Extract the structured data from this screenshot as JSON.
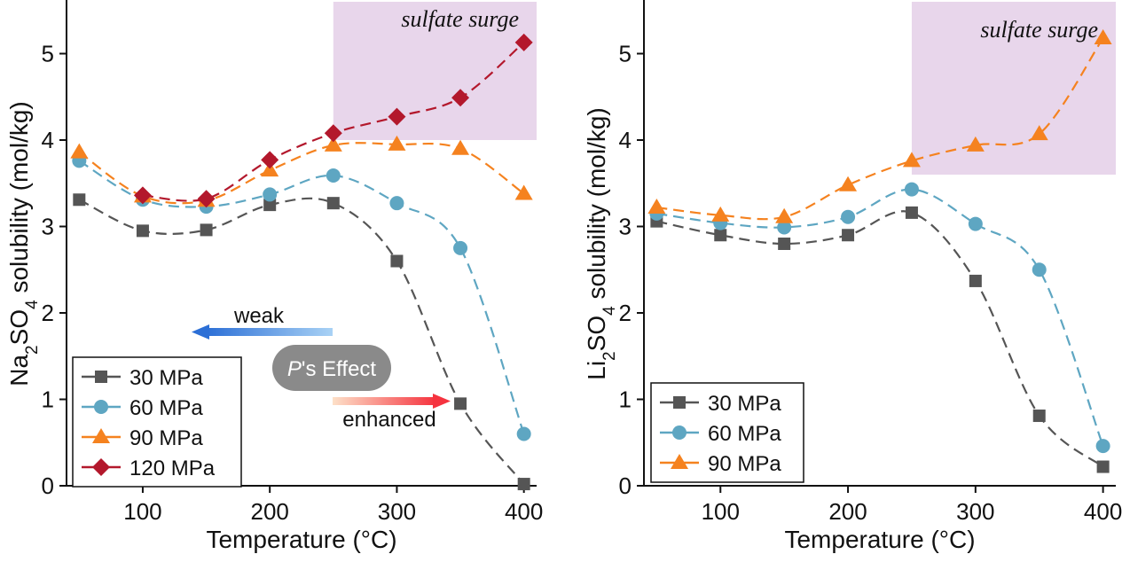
{
  "chart_data": [
    {
      "type": "line",
      "xlabel": "Temperature (°C)",
      "ylabel_parts": [
        "Na",
        "2",
        "SO",
        "4",
        " solubility (mol/kg)"
      ],
      "x": [
        50,
        100,
        150,
        200,
        250,
        300,
        350,
        400
      ],
      "xlim": [
        40,
        410
      ],
      "xticks": [
        100,
        200,
        300,
        400
      ],
      "ylim": [
        0,
        5.6
      ],
      "yticks": [
        0,
        1,
        2,
        3,
        4,
        5
      ],
      "legend": "lower left",
      "shade": {
        "label": "sulfate surge",
        "x_from": 250,
        "y_from": 4.0,
        "color": "#e8d6eb"
      },
      "annotations": {
        "weak": "weak",
        "effect_italic": "P",
        "effect_rest": "'s Effect",
        "enhanced": "enhanced"
      },
      "series": [
        {
          "name": "30 MPa",
          "color": "#555555",
          "marker": "square",
          "values": [
            3.31,
            2.95,
            2.96,
            3.25,
            3.27,
            2.6,
            0.95,
            0.02
          ]
        },
        {
          "name": "60 MPa",
          "color": "#5ea6c2",
          "marker": "circle",
          "values": [
            3.76,
            3.31,
            3.23,
            3.37,
            3.59,
            3.27,
            2.75,
            0.6
          ]
        },
        {
          "name": "90 MPa",
          "color": "#f5821f",
          "marker": "triangle",
          "values": [
            3.86,
            3.35,
            3.3,
            3.65,
            3.94,
            3.95,
            3.9,
            3.38
          ]
        },
        {
          "name": "120 MPa",
          "color": "#b3182c",
          "marker": "diamond",
          "values": [
            null,
            3.36,
            3.32,
            3.77,
            4.08,
            4.27,
            4.49,
            5.13
          ]
        }
      ]
    },
    {
      "type": "line",
      "xlabel": "Temperature (°C)",
      "ylabel_parts": [
        "Li",
        "2",
        "SO",
        "4",
        " solubility (mol/kg)"
      ],
      "x": [
        50,
        100,
        150,
        200,
        250,
        300,
        350,
        400
      ],
      "xlim": [
        40,
        410
      ],
      "xticks": [
        100,
        200,
        300,
        400
      ],
      "ylim": [
        0,
        5.6
      ],
      "yticks": [
        0,
        1,
        2,
        3,
        4,
        5
      ],
      "legend": "lower left",
      "shade": {
        "label": "sulfate surge",
        "x_from": 250,
        "y_from": 3.6,
        "color": "#e8d6eb"
      },
      "series": [
        {
          "name": "30 MPa",
          "color": "#555555",
          "marker": "square",
          "values": [
            3.06,
            2.9,
            2.8,
            2.9,
            3.16,
            2.37,
            0.81,
            0.22
          ]
        },
        {
          "name": "60 MPa",
          "color": "#5ea6c2",
          "marker": "circle",
          "values": [
            3.15,
            3.04,
            2.99,
            3.11,
            3.43,
            3.03,
            2.5,
            0.46
          ]
        },
        {
          "name": "90 MPa",
          "color": "#f5821f",
          "marker": "triangle",
          "values": [
            3.22,
            3.13,
            3.11,
            3.48,
            3.76,
            3.94,
            4.07,
            5.18
          ]
        }
      ]
    }
  ]
}
